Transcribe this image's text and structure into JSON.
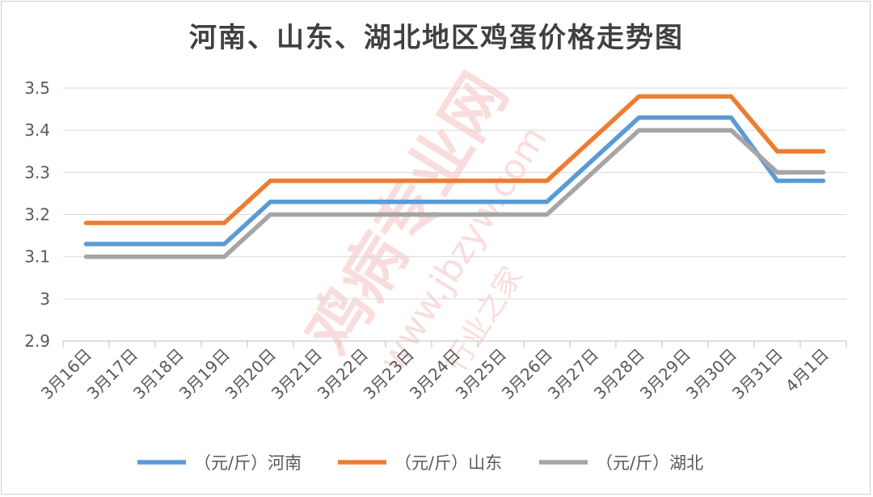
{
  "chart_data": {
    "type": "line",
    "title": "河南、山东、湖北地区鸡蛋价格走势图",
    "categories": [
      "3月16日",
      "3月17日",
      "3月18日",
      "3月19日",
      "3月20日",
      "3月21日",
      "3月22日",
      "3月23日",
      "3月24日",
      "3月25日",
      "3月26日",
      "3月27日",
      "3月28日",
      "3月29日",
      "3月30日",
      "3月31日",
      "4月1日"
    ],
    "yticks": [
      "2.9",
      "3",
      "3.1",
      "3.2",
      "3.3",
      "3.4",
      "3.5"
    ],
    "ylim": [
      2.9,
      3.5
    ],
    "grid": true,
    "legend_position": "bottom",
    "series": [
      {
        "name": "（元/斤）河南",
        "color": "#5B9BD5",
        "values": [
          3.13,
          3.13,
          3.13,
          3.13,
          3.23,
          3.23,
          3.23,
          3.23,
          3.23,
          3.23,
          3.23,
          3.33,
          3.43,
          3.43,
          3.43,
          3.28,
          3.28
        ]
      },
      {
        "name": "（元/斤）山东",
        "color": "#ED7D31",
        "values": [
          3.18,
          3.18,
          3.18,
          3.18,
          3.28,
          3.28,
          3.28,
          3.28,
          3.28,
          3.28,
          3.28,
          3.38,
          3.48,
          3.48,
          3.48,
          3.35,
          3.35
        ]
      },
      {
        "name": "（元/斤）湖北",
        "color": "#A5A5A5",
        "values": [
          3.1,
          3.1,
          3.1,
          3.1,
          3.2,
          3.2,
          3.2,
          3.2,
          3.2,
          3.2,
          3.2,
          3.3,
          3.4,
          3.4,
          3.4,
          3.3,
          3.3
        ]
      }
    ]
  },
  "watermark": {
    "main": "鸡病专业网",
    "url": "www.jbzyw.com",
    "sub": "行业之家"
  }
}
